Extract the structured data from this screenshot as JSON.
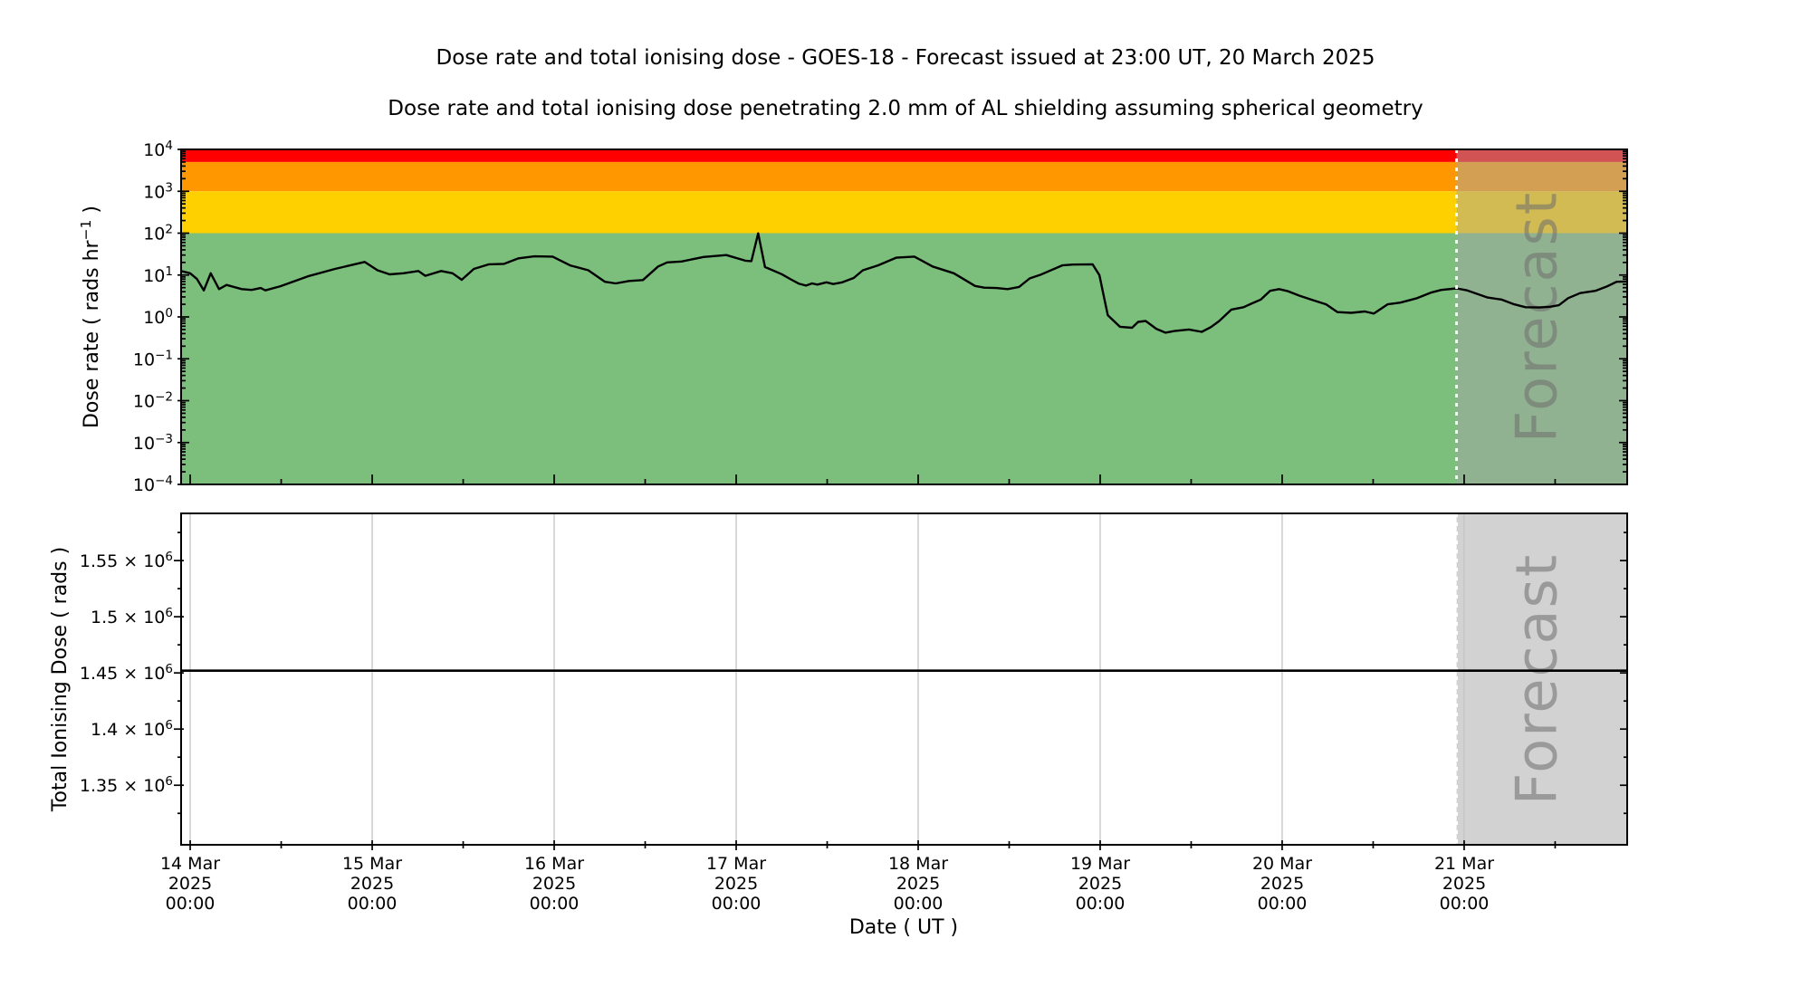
{
  "title": "Dose rate and total ionising dose - GOES-18 - Forecast issued at 23:00 UT, 20 March 2025",
  "subtitle": "Dose rate and total ionising dose penetrating 2.0 mm of AL shielding assuming spherical geometry",
  "forecast": {
    "label": "Forecast",
    "start_hour": 167,
    "overlay_color": "rgba(166,166,166,0.5)",
    "divider_color": "#ffffff",
    "divider_style": "dotted"
  },
  "x_axis": {
    "xlabel": "Date ( UT )",
    "x_unit": "hours since 14 Mar 2025 00:00 UT",
    "xlim_hours": [
      -1.2,
      189.5
    ],
    "tick_hours": [
      0,
      24,
      48,
      72,
      96,
      120,
      144,
      168
    ],
    "minor_tick_hours": [
      12,
      36,
      60,
      84,
      108,
      132,
      156,
      180
    ],
    "tick_labels": [
      [
        "14 Mar",
        "2025",
        "00:00"
      ],
      [
        "15 Mar",
        "2025",
        "00:00"
      ],
      [
        "16 Mar",
        "2025",
        "00:00"
      ],
      [
        "17 Mar",
        "2025",
        "00:00"
      ],
      [
        "18 Mar",
        "2025",
        "00:00"
      ],
      [
        "19 Mar",
        "2025",
        "00:00"
      ],
      [
        "20 Mar",
        "2025",
        "00:00"
      ],
      [
        "21 Mar",
        "2025",
        "00:00"
      ]
    ]
  },
  "chart_data": [
    {
      "type": "line",
      "panel": "dose-rate",
      "ylabel": "Dose rate ( rads hr^-1 )",
      "yscale": "log",
      "ylim": [
        0.0001,
        10000
      ],
      "ytick_labels": [
        "10^4",
        "10^3",
        "10^2",
        "10^1",
        "10^0",
        "10^-1",
        "10^-2",
        "10^-3",
        "10^-4"
      ],
      "threshold_bands": [
        {
          "name": "red",
          "range": [
            5000,
            10000
          ],
          "color": "#ff0000"
        },
        {
          "name": "orange",
          "range": [
            1000,
            5000
          ],
          "color": "#ff9800"
        },
        {
          "name": "yellow",
          "range": [
            100,
            1000
          ],
          "color": "#ffd000"
        },
        {
          "name": "green",
          "range": [
            0.0001,
            100
          ],
          "color": "#7cbe7c"
        }
      ],
      "series": [
        {
          "name": "dose-rate",
          "color": "#000000",
          "points": [
            [
              -1.2,
              12.5
            ],
            [
              0,
              11
            ],
            [
              0.9,
              8
            ],
            [
              1.8,
              4.3
            ],
            [
              2.7,
              11
            ],
            [
              3.8,
              4.6
            ],
            [
              4.8,
              5.8
            ],
            [
              6.8,
              4.6
            ],
            [
              8.1,
              4.4
            ],
            [
              9.3,
              4.9
            ],
            [
              9.9,
              4.3
            ],
            [
              11.9,
              5.4
            ],
            [
              15.5,
              9.3
            ],
            [
              19.1,
              14
            ],
            [
              23,
              20.5
            ],
            [
              24.7,
              13
            ],
            [
              26.3,
              10.4
            ],
            [
              28.1,
              11
            ],
            [
              30.1,
              12.5
            ],
            [
              31,
              9.6
            ],
            [
              33.1,
              12.5
            ],
            [
              34.6,
              11
            ],
            [
              35.8,
              7.7
            ],
            [
              37.4,
              14
            ],
            [
              39.4,
              18
            ],
            [
              41.4,
              18.5
            ],
            [
              43.3,
              25
            ],
            [
              45.4,
              28
            ],
            [
              47.8,
              27.5
            ],
            [
              50.1,
              17
            ],
            [
              52.5,
              13
            ],
            [
              54.7,
              6.9
            ],
            [
              56.1,
              6.3
            ],
            [
              57.9,
              7.2
            ],
            [
              59.7,
              7.6
            ],
            [
              61.7,
              16
            ],
            [
              62.9,
              20
            ],
            [
              64.8,
              21
            ],
            [
              67.7,
              27
            ],
            [
              70.7,
              30
            ],
            [
              73.2,
              22
            ],
            [
              74,
              21.5
            ],
            [
              74.9,
              99
            ],
            [
              75.8,
              15.5
            ],
            [
              78,
              10.5
            ],
            [
              79.2,
              7.9
            ],
            [
              80.3,
              6.2
            ],
            [
              81.2,
              5.6
            ],
            [
              82,
              6.3
            ],
            [
              82.7,
              5.9
            ],
            [
              83.9,
              6.7
            ],
            [
              84.8,
              6.1
            ],
            [
              86,
              6.7
            ],
            [
              87.5,
              8.5
            ],
            [
              88.7,
              13
            ],
            [
              90.7,
              17
            ],
            [
              93.1,
              26
            ],
            [
              95.5,
              27.5
            ],
            [
              97.9,
              16
            ],
            [
              100.7,
              11
            ],
            [
              103.5,
              5.5
            ],
            [
              104.7,
              5
            ],
            [
              106.3,
              4.9
            ],
            [
              107.8,
              4.6
            ],
            [
              109.3,
              5.2
            ],
            [
              110.7,
              8.3
            ],
            [
              112.2,
              10.3
            ],
            [
              115,
              17
            ],
            [
              116.4,
              17.8
            ],
            [
              119,
              18
            ],
            [
              119.9,
              10
            ],
            [
              121,
              1.1
            ],
            [
              122.6,
              0.58
            ],
            [
              124.2,
              0.55
            ],
            [
              125,
              0.76
            ],
            [
              126,
              0.8
            ],
            [
              127.4,
              0.52
            ],
            [
              128.6,
              0.42
            ],
            [
              129.8,
              0.46
            ],
            [
              131.7,
              0.5
            ],
            [
              133.4,
              0.44
            ],
            [
              134.6,
              0.57
            ],
            [
              135.7,
              0.8
            ],
            [
              137.3,
              1.5
            ],
            [
              138.9,
              1.7
            ],
            [
              140,
              2.1
            ],
            [
              141.2,
              2.6
            ],
            [
              142.4,
              4.2
            ],
            [
              143.6,
              4.6
            ],
            [
              144.8,
              4.1
            ],
            [
              146.3,
              3.2
            ],
            [
              148.1,
              2.5
            ],
            [
              149.8,
              2
            ],
            [
              151.3,
              1.3
            ],
            [
              153.1,
              1.25
            ],
            [
              154.9,
              1.35
            ],
            [
              156.1,
              1.2
            ],
            [
              157.9,
              2
            ],
            [
              159.6,
              2.2
            ],
            [
              161.8,
              2.8
            ],
            [
              163.6,
              3.8
            ],
            [
              165,
              4.4
            ],
            [
              167,
              4.8
            ],
            [
              168.4,
              4.3
            ],
            [
              171.1,
              2.9
            ],
            [
              172.9,
              2.6
            ],
            [
              174.6,
              2
            ],
            [
              176.1,
              1.7
            ],
            [
              177.9,
              1.68
            ],
            [
              179.3,
              1.75
            ],
            [
              180.5,
              1.9
            ],
            [
              181.7,
              2.8
            ],
            [
              183.3,
              3.7
            ],
            [
              185.3,
              4.2
            ],
            [
              186.9,
              5.4
            ],
            [
              188.1,
              6.9
            ],
            [
              189.5,
              7
            ]
          ]
        }
      ]
    },
    {
      "type": "line",
      "panel": "total-ionising-dose",
      "ylabel": "Total Ionising Dose ( rads )",
      "yscale": "linear",
      "ylim": [
        1297000,
        1592000
      ],
      "yticks": [
        1550000,
        1500000,
        1450000,
        1400000,
        1350000
      ],
      "ytick_labels": [
        "1.55 × 10^6",
        "1.5 × 10^6",
        "1.45 × 10^6",
        "1.4 × 10^6",
        "1.35 × 10^6"
      ],
      "minor_yticks": [
        1575000,
        1525000,
        1475000,
        1425000,
        1375000,
        1325000
      ],
      "grid": "vertical-daily",
      "grid_color": "#c4c4c4",
      "series": [
        {
          "name": "total-dose",
          "color": "#000000",
          "points": [
            [
              -1.2,
              1452000
            ],
            [
              189.5,
              1452000
            ]
          ]
        }
      ]
    }
  ]
}
